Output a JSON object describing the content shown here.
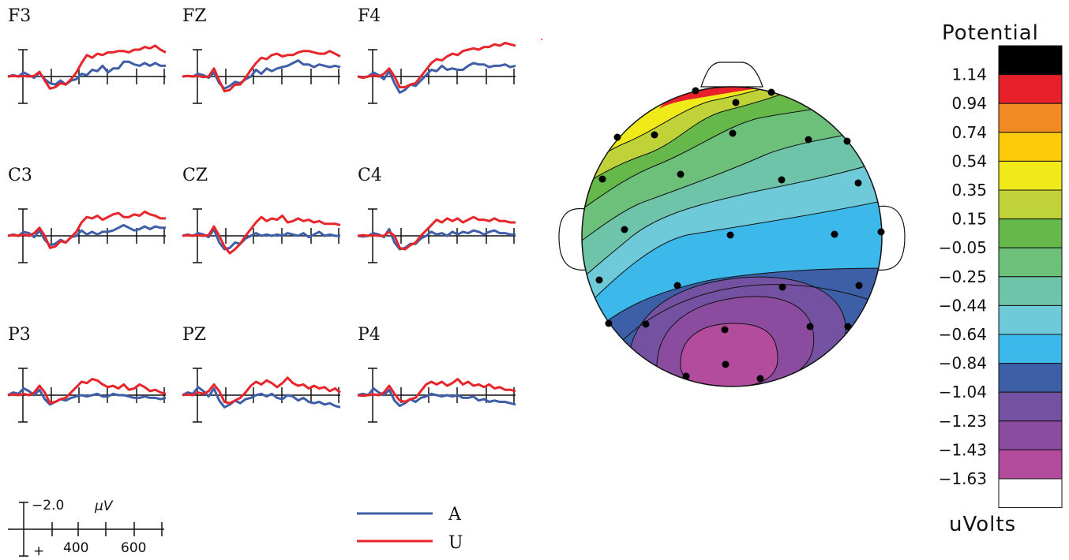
{
  "chart_data": [
    {
      "type": "line",
      "panel": "erp-grid",
      "series_names": [
        "A",
        "U"
      ],
      "series_colors": {
        "A": "#3f5ea8",
        "U": "#e8252a"
      },
      "x_ticks": [
        "400",
        "600"
      ],
      "y_scale_label": "−2.0",
      "y_scale_unit": "μV",
      "y_polarity_label": "+",
      "channels": [
        {
          "name": "F3",
          "A": [
            0,
            0.1,
            0,
            0.3,
            0.1,
            -0.1,
            0.3,
            -0.2,
            -0.5,
            -0.6,
            -0.3,
            -0.6,
            -0.3,
            -0.2,
            0.2,
            0.1,
            0.5,
            0.4,
            0.8,
            0.3,
            0.6,
            0.6,
            1.1,
            1.1,
            0.9,
            0.8,
            1.0,
            0.8,
            1.0,
            0.8,
            0.8
          ],
          "U": [
            0,
            0.05,
            0,
            0.05,
            0,
            0.05,
            0.35,
            -0.3,
            -0.9,
            -0.8,
            -0.5,
            -0.6,
            -0.2,
            0.3,
            1.0,
            1.6,
            1.4,
            1.7,
            1.6,
            1.8,
            1.8,
            1.9,
            1.9,
            1.8,
            2.0,
            2.0,
            2.2,
            2.1,
            2.3,
            2.0,
            1.8
          ]
        },
        {
          "name": "FZ",
          "A": [
            0,
            0.05,
            0,
            0.2,
            0.1,
            -0.1,
            0.3,
            -0.5,
            -0.9,
            -0.7,
            -0.4,
            -0.5,
            -0.2,
            0,
            0.5,
            0.2,
            0.6,
            0.4,
            0.6,
            0.7,
            0.8,
            1.0,
            1.2,
            0.9,
            0.9,
            0.7,
            0.9,
            0.8,
            0.7,
            0.8,
            0.7
          ],
          "U": [
            0,
            0.05,
            0,
            0.05,
            -0.05,
            0,
            0.6,
            -0.3,
            -1.1,
            -1.0,
            -0.6,
            -0.6,
            -0.1,
            0.5,
            1.0,
            1.4,
            1.3,
            1.6,
            1.7,
            1.5,
            1.6,
            1.6,
            1.8,
            1.9,
            1.9,
            1.8,
            1.7,
            1.7,
            1.9,
            1.7,
            1.5
          ]
        },
        {
          "name": "F4",
          "A": [
            0,
            -0.05,
            0,
            0.3,
            0.1,
            -0.2,
            0.4,
            -0.5,
            -1.2,
            -1.0,
            -0.6,
            -0.7,
            -0.3,
            0.1,
            0.5,
            0.4,
            0.8,
            0.5,
            0.6,
            0.5,
            0.5,
            0.8,
            1.0,
            0.9,
            0.9,
            0.7,
            0.8,
            0.8,
            0.9,
            0.7,
            0.8
          ],
          "U": [
            0,
            -0.1,
            0,
            0.1,
            0,
            0.2,
            0.6,
            0,
            -0.8,
            -0.8,
            -0.6,
            -0.5,
            0,
            0.5,
            1.0,
            1.3,
            1.2,
            1.5,
            1.7,
            1.6,
            1.9,
            2.0,
            2.1,
            2.0,
            2.2,
            2.2,
            2.4,
            2.3,
            2.5,
            2.4,
            2.3
          ]
        },
        {
          "name": "C3",
          "A": [
            0,
            0.1,
            0,
            0.3,
            0.2,
            -0.1,
            0.4,
            -0.3,
            -0.7,
            -0.6,
            -0.3,
            -0.5,
            -0.1,
            0,
            0.4,
            0.1,
            0.3,
            0.1,
            0.3,
            0.3,
            0.4,
            0.6,
            0.8,
            0.6,
            0.4,
            0.5,
            0.7,
            0.5,
            0.7,
            0.6,
            0.6
          ],
          "U": [
            0,
            0.05,
            0,
            0.1,
            0,
            0.2,
            0.6,
            0,
            -0.9,
            -0.8,
            -0.4,
            -0.5,
            -0.1,
            0.3,
            1.0,
            1.4,
            1.3,
            1.5,
            1.2,
            1.4,
            1.6,
            1.7,
            1.4,
            1.4,
            1.6,
            1.5,
            1.8,
            1.6,
            1.5,
            1.3,
            1.3
          ]
        },
        {
          "name": "CZ",
          "A": [
            0,
            0.1,
            0,
            0.2,
            0.1,
            -0.1,
            0.5,
            -0.5,
            -1.0,
            -0.9,
            -0.5,
            -0.6,
            -0.2,
            0,
            0.2,
            0,
            0.1,
            0,
            0.1,
            0,
            0.2,
            0.1,
            0,
            0.2,
            -0.1,
            0.1,
            0.3,
            0,
            0.1,
            0,
            0
          ],
          "U": [
            0,
            0.05,
            0,
            0.05,
            0,
            0.05,
            0.7,
            0,
            -0.8,
            -1.3,
            -1.0,
            -0.6,
            0,
            0.5,
            1.0,
            1.4,
            1.1,
            1.3,
            1.2,
            1.5,
            1.0,
            1.1,
            1.3,
            1.1,
            1.2,
            1.0,
            1.1,
            0.9,
            0.9,
            0.9,
            0.8
          ]
        },
        {
          "name": "C4",
          "A": [
            0,
            -0.05,
            0,
            0.2,
            0.1,
            -0.1,
            0.5,
            -0.5,
            -1.0,
            -0.9,
            -0.6,
            -0.6,
            -0.2,
            0,
            0.3,
            0.1,
            0.2,
            0,
            0.3,
            0.1,
            0.3,
            0.2,
            0.4,
            0.3,
            0.1,
            0.3,
            0.4,
            0.2,
            0.2,
            0.1,
            0.1
          ],
          "U": [
            0,
            0.05,
            0,
            0.05,
            0,
            0,
            0.3,
            0,
            -0.9,
            -1.0,
            -0.7,
            -0.5,
            0,
            0.4,
            0.8,
            1.2,
            1.0,
            1.3,
            1.1,
            1.3,
            1.0,
            1.2,
            1.4,
            1.2,
            1.2,
            1.1,
            1.3,
            1.1,
            1.1,
            1.0,
            1.0
          ]
        },
        {
          "name": "P3",
          "A": [
            0,
            0.2,
            0.1,
            0.5,
            0.3,
            0,
            0.4,
            -0.3,
            -0.7,
            -0.5,
            -0.3,
            -0.4,
            -0.2,
            -0.1,
            0,
            -0.1,
            0,
            0.1,
            -0.1,
            -0.1,
            0.1,
            0,
            0,
            -0.1,
            -0.2,
            -0.2,
            -0.1,
            -0.2,
            -0.2,
            -0.3,
            -0.2
          ],
          "U": [
            0,
            0.05,
            0,
            0.1,
            0,
            0.2,
            0.7,
            0.2,
            -0.6,
            -0.5,
            -0.3,
            -0.2,
            0.2,
            0.6,
            1.0,
            0.9,
            1.2,
            1.1,
            0.8,
            0.6,
            0.7,
            0.5,
            0.8,
            0.4,
            0.5,
            0.8,
            0.6,
            0.3,
            0.4,
            0.2,
            0.1
          ]
        },
        {
          "name": "PZ",
          "A": [
            0,
            0.2,
            0.1,
            0.6,
            0.3,
            -0.1,
            0.5,
            -0.4,
            -0.9,
            -0.7,
            -0.4,
            -0.6,
            -0.3,
            -0.2,
            0,
            0.1,
            -0.1,
            0.1,
            -0.2,
            -0.3,
            0,
            -0.1,
            -0.4,
            -0.2,
            -0.5,
            -0.6,
            -0.5,
            -0.7,
            -0.6,
            -0.8,
            -0.9
          ],
          "U": [
            0,
            0.05,
            0,
            0.2,
            0.1,
            0.3,
            0.8,
            0.3,
            -0.5,
            -0.6,
            -0.4,
            -0.2,
            0.2,
            0.7,
            1.0,
            0.8,
            1.1,
            0.9,
            0.6,
            0.9,
            1.3,
            0.9,
            0.7,
            0.8,
            0.5,
            0.7,
            0.5,
            0.6,
            0.3,
            0.5,
            0.2
          ]
        },
        {
          "name": "P4",
          "A": [
            0,
            0.1,
            0,
            0.5,
            0.2,
            0,
            0.4,
            -0.4,
            -0.8,
            -0.6,
            -0.3,
            -0.5,
            -0.2,
            -0.1,
            0.1,
            0,
            -0.1,
            0,
            -0.1,
            0,
            -0.2,
            -0.2,
            -0.1,
            -0.4,
            -0.3,
            -0.5,
            -0.4,
            -0.5,
            -0.5,
            -0.6,
            -0.7
          ],
          "U": [
            0,
            -0.05,
            0,
            0.05,
            0,
            0.2,
            0.7,
            0.1,
            -0.4,
            -0.5,
            -0.3,
            -0.2,
            0.3,
            0.8,
            1.0,
            0.8,
            1.0,
            0.7,
            0.9,
            1.2,
            0.8,
            1.0,
            0.7,
            0.8,
            0.6,
            0.8,
            0.5,
            0.6,
            0.4,
            0.4,
            0.3
          ]
        }
      ]
    },
    {
      "type": "heatmap",
      "panel": "scalp-topography",
      "colorbar_title": "Potential",
      "colorbar_unit": "uVolts",
      "colorbar_ticks": [
        "1.14",
        "0.94",
        "0.74",
        "0.54",
        "0.35",
        "0.15",
        "−0.05",
        "−0.25",
        "−0.44",
        "−0.64",
        "−0.84",
        "−1.04",
        "−1.23",
        "−1.43",
        "−1.63"
      ],
      "colorbar_colors": [
        "#000000",
        "#e8202a",
        "#f28a24",
        "#fdcb0a",
        "#f0ea1a",
        "#bfd339",
        "#66b84a",
        "#6dc07a",
        "#6dc4a8",
        "#6ecad8",
        "#3cb8eb",
        "#3c5fa8",
        "#7451a1",
        "#8b4b9f",
        "#b34c9c",
        "#ffffff"
      ]
    }
  ]
}
